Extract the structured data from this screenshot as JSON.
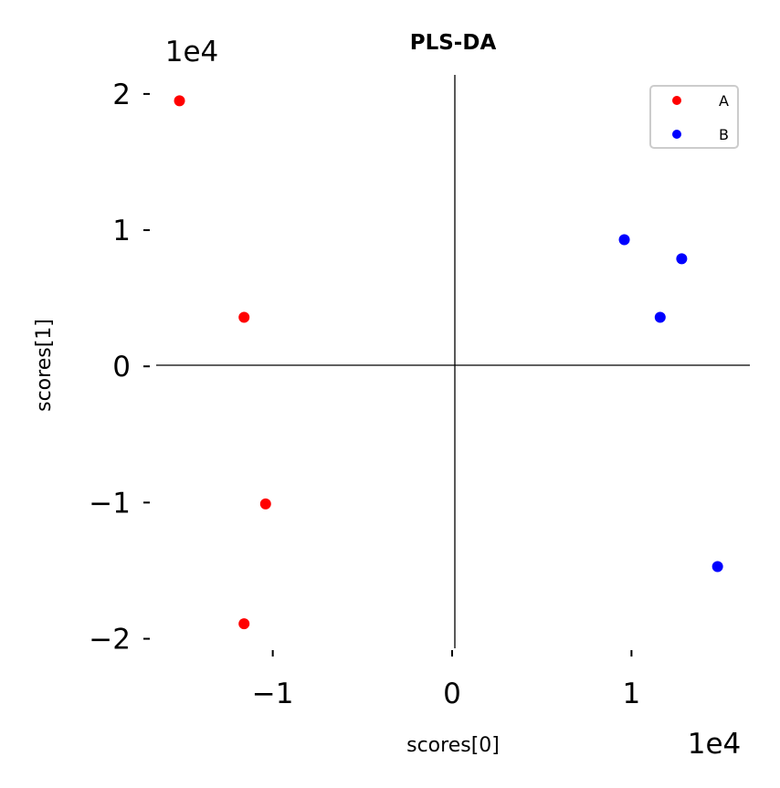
{
  "chart_data": {
    "type": "scatter",
    "title": "PLS-DA",
    "xlabel": "scores[0]",
    "ylabel": "scores[1]",
    "x_offset_label": "1e4",
    "y_offset_label": "1e4",
    "xlim": [
      -1.65,
      1.66
    ],
    "ylim": [
      -2.07,
      2.14
    ],
    "x_ticks": [
      -1,
      0,
      1
    ],
    "x_tick_labels": [
      "−1",
      "0",
      "1"
    ],
    "y_ticks": [
      -2,
      -1,
      0,
      1,
      2
    ],
    "y_tick_labels": [
      "−2",
      "−1",
      "0",
      "1",
      "2"
    ],
    "grid": false,
    "zero_lines": true,
    "legend_position": "top-right",
    "series": [
      {
        "name": "A",
        "color": "#ff0000",
        "points": [
          {
            "x": -1.52,
            "y": 1.95
          },
          {
            "x": -1.16,
            "y": 0.36
          },
          {
            "x": -1.04,
            "y": -1.01
          },
          {
            "x": -1.16,
            "y": -1.89
          }
        ]
      },
      {
        "name": "B",
        "color": "#0000ff",
        "points": [
          {
            "x": 0.96,
            "y": 0.93
          },
          {
            "x": 1.28,
            "y": 0.79
          },
          {
            "x": 1.16,
            "y": 0.36
          },
          {
            "x": 1.48,
            "y": -1.47
          }
        ]
      }
    ]
  }
}
